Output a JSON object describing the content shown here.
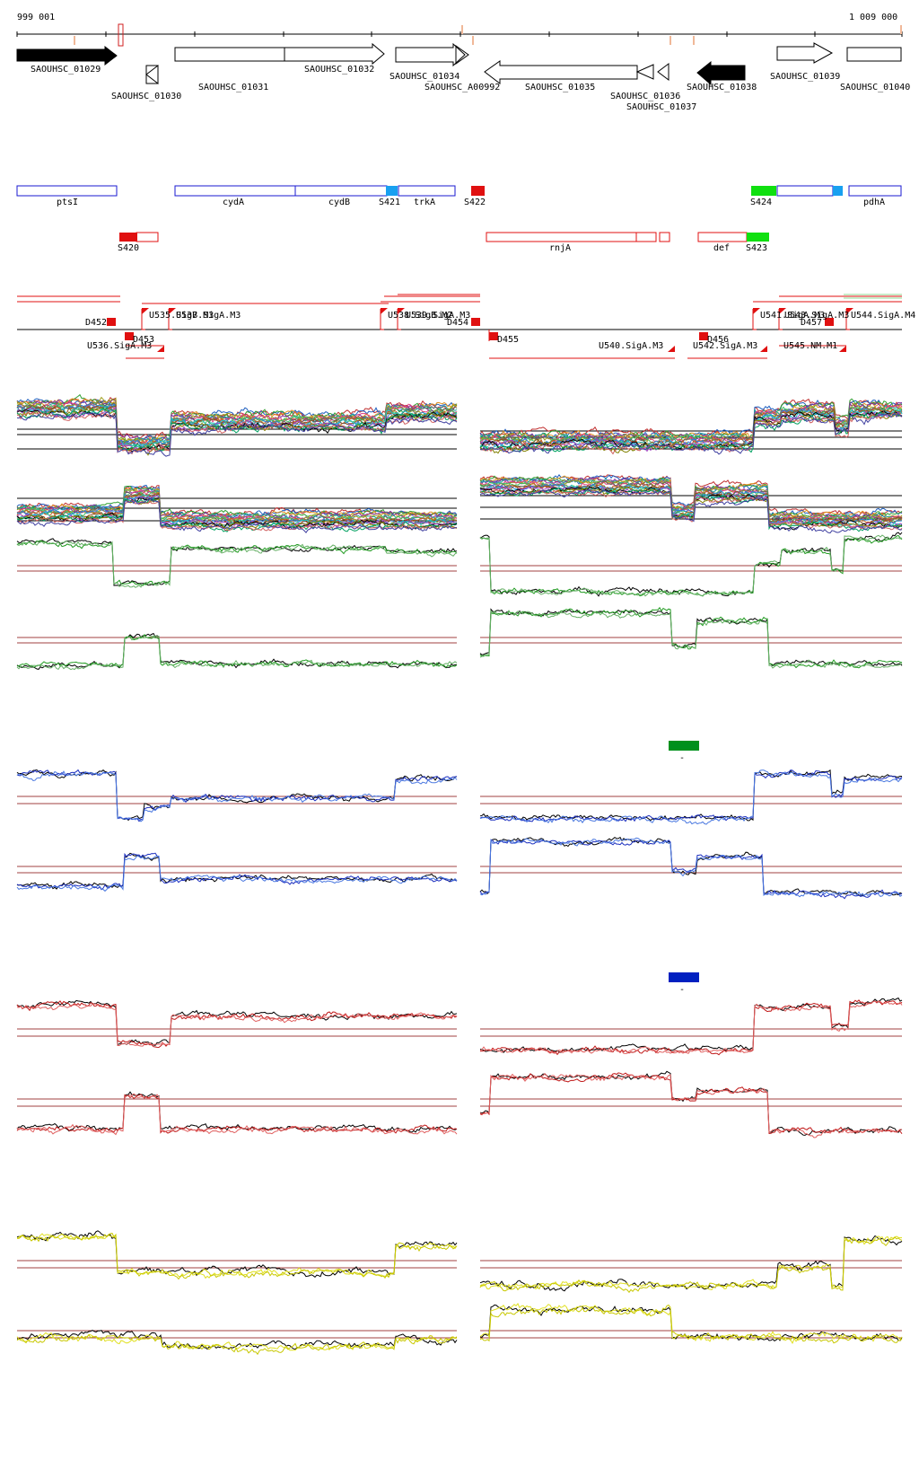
{
  "axis": {
    "start_label": "999 001",
    "end_label": "1 009 000"
  },
  "genes_top": [
    {
      "label": "SAOUHSC_01029"
    },
    {
      "label": "SAOUHSC_01030"
    },
    {
      "label": "SAOUHSC_01031"
    },
    {
      "label": "SAOUHSC_01032"
    },
    {
      "label": "SAOUHSC_01034"
    },
    {
      "label": "SAOUHSC_A00992"
    },
    {
      "label": "SAOUHSC_01035"
    },
    {
      "label": "SAOUHSC_01036"
    },
    {
      "label": "SAOUHSC_01037"
    },
    {
      "label": "SAOUHSC_01038"
    },
    {
      "label": "SAOUHSC_01039"
    },
    {
      "label": "SAOUHSC_01040"
    }
  ],
  "blue_genes": [
    {
      "label": "ptsI"
    },
    {
      "label": "cydA"
    },
    {
      "label": "cydB"
    },
    {
      "label": "S421"
    },
    {
      "label": "trkA"
    },
    {
      "label": "S422"
    },
    {
      "label": "S424"
    },
    {
      "label": "pdhA"
    }
  ],
  "red_genes": [
    {
      "label": "S420"
    },
    {
      "label": "rnjA"
    },
    {
      "label": "def"
    },
    {
      "label": "S423"
    }
  ],
  "tu_labels": [
    {
      "label": "D452"
    },
    {
      "label": "D453"
    },
    {
      "label": "U535.SigB.M3"
    },
    {
      "label": "U537.SigA.M3"
    },
    {
      "label": "U536.SigA.M3"
    },
    {
      "label": "U538.SigB.M2"
    },
    {
      "label": "U539.SigA.M3"
    },
    {
      "label": "D454"
    },
    {
      "label": "D455"
    },
    {
      "label": "U540.SigA.M3"
    },
    {
      "label": "D456"
    },
    {
      "label": "U542.SigA.M3"
    },
    {
      "label": "U541.SigA.M3"
    },
    {
      "label": "U543.SigA.M3"
    },
    {
      "label": "D457"
    },
    {
      "label": "U545.NM.M1"
    },
    {
      "label": "U544.SigA.M4"
    }
  ],
  "legend_markers": [
    {
      "label": "-",
      "color": "#00901c"
    },
    {
      "label": "-",
      "color": "#0020c0"
    }
  ],
  "colors": {
    "gene_fill": "#000000",
    "blue_feature": "#1a1ad0",
    "red_feature": "#e01010",
    "sigma_cyan": "#18a0f0",
    "sigma_green": "#10e010",
    "threshold": "#a04040",
    "panel_green": "#1f9a1f",
    "panel_blue": "#1c2fbf",
    "panel_red": "#c01818",
    "panel_yellow": "#e0e020"
  }
}
